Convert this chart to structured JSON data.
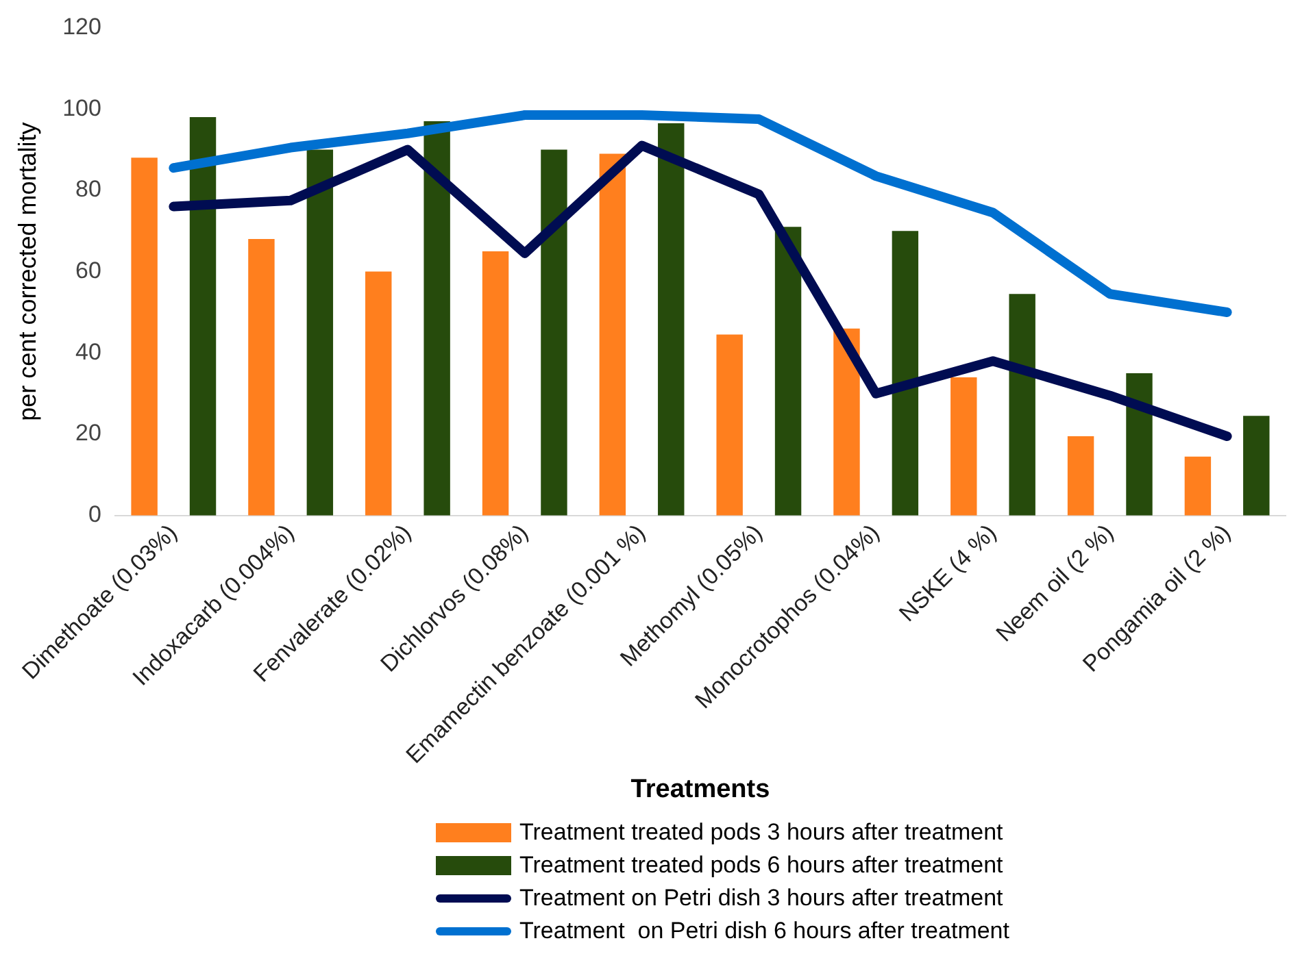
{
  "chart_data": {
    "type": "bar",
    "xlabel": "Treatments",
    "ylabel": "per cent corrected mortality",
    "categories": [
      "Dimethoate (0.03%)",
      "Indoxacarb (0.004%)",
      "Fenvalerate (0.02%)",
      "Dichlorvos (0.08%)",
      "Emamectin benzoate (0.001 %)",
      "Methomyl (0.05%)",
      "Monocrotophos (0.04%)",
      "NSKE (4 %)",
      "Neem oil (2 %)",
      "Pongamia oil (2 %)"
    ],
    "series": [
      {
        "name": "Treatment treated pods 3 hours after treatment",
        "color": "#ff7f1e",
        "values": [
          88,
          68,
          60,
          65,
          89,
          44.5,
          46,
          34,
          19.5,
          14.5
        ]
      },
      {
        "name": "Treatment treated pods 6 hours after treatment",
        "color": "#264b0c",
        "values": [
          98,
          90,
          97,
          90,
          96.5,
          71,
          70,
          54.5,
          35,
          24.5
        ]
      },
      {
        "name": "Treatment on Petri dish 3 hours after treatment",
        "type": "line",
        "color": "#000c52",
        "values": [
          76,
          77.5,
          90,
          64.5,
          91,
          79,
          30,
          38,
          29.5,
          19.5
        ]
      },
      {
        "name": "Treatment  on Petri dish 6 hours after treatment",
        "type": "line",
        "color": "#0070d0",
        "values": [
          85.5,
          90.5,
          94,
          98.5,
          98.5,
          97.5,
          83.5,
          74.5,
          54.5,
          50
        ]
      }
    ],
    "ylim": [
      0,
      120
    ],
    "yticks": [
      0,
      20,
      40,
      60,
      80,
      100,
      120
    ],
    "grid": false,
    "legend": "bottom"
  }
}
